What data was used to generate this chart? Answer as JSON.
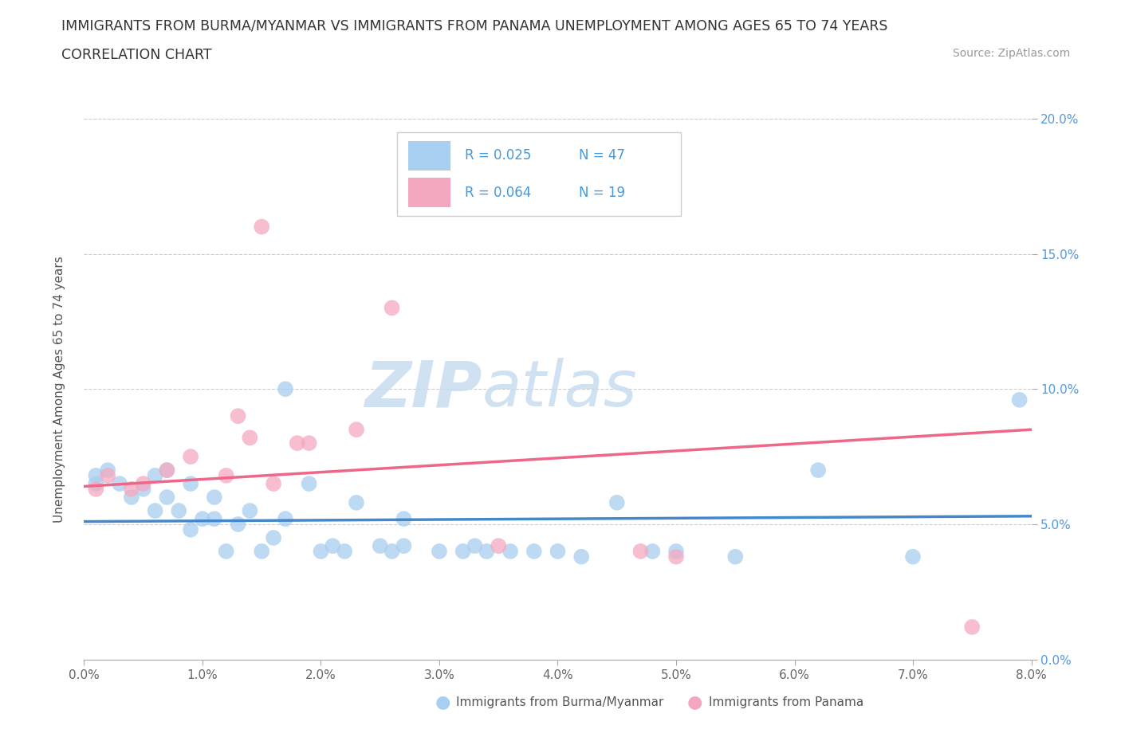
{
  "title_line1": "IMMIGRANTS FROM BURMA/MYANMAR VS IMMIGRANTS FROM PANAMA UNEMPLOYMENT AMONG AGES 65 TO 74 YEARS",
  "title_line2": "CORRELATION CHART",
  "source_text": "Source: ZipAtlas.com",
  "ylabel": "Unemployment Among Ages 65 to 74 years",
  "xlim": [
    0.0,
    0.08
  ],
  "ylim": [
    0.0,
    0.2
  ],
  "xtick_labels": [
    "0.0%",
    "1.0%",
    "2.0%",
    "3.0%",
    "4.0%",
    "5.0%",
    "6.0%",
    "7.0%",
    "8.0%"
  ],
  "xtick_values": [
    0.0,
    0.01,
    0.02,
    0.03,
    0.04,
    0.05,
    0.06,
    0.07,
    0.08
  ],
  "ytick_labels": [
    "0.0%",
    "5.0%",
    "10.0%",
    "15.0%",
    "20.0%"
  ],
  "ytick_values": [
    0.0,
    0.05,
    0.1,
    0.15,
    0.2
  ],
  "watermark_zip": "ZIP",
  "watermark_atlas": "atlas",
  "legend_R_burma": "R = 0.025",
  "legend_N_burma": "N = 47",
  "legend_R_panama": "R = 0.064",
  "legend_N_panama": "N = 19",
  "burma_color": "#a8cef0",
  "panama_color": "#f4a8c0",
  "burma_line_color": "#4488cc",
  "panama_line_color": "#ee6688",
  "burma_scatter_x": [
    0.001,
    0.001,
    0.002,
    0.003,
    0.004,
    0.005,
    0.006,
    0.006,
    0.007,
    0.007,
    0.008,
    0.009,
    0.009,
    0.01,
    0.011,
    0.011,
    0.012,
    0.013,
    0.014,
    0.015,
    0.016,
    0.017,
    0.017,
    0.019,
    0.02,
    0.021,
    0.022,
    0.023,
    0.025,
    0.026,
    0.027,
    0.027,
    0.03,
    0.032,
    0.033,
    0.034,
    0.036,
    0.038,
    0.04,
    0.042,
    0.045,
    0.048,
    0.05,
    0.055,
    0.062,
    0.07,
    0.079
  ],
  "burma_scatter_y": [
    0.065,
    0.068,
    0.07,
    0.065,
    0.06,
    0.063,
    0.068,
    0.055,
    0.07,
    0.06,
    0.055,
    0.065,
    0.048,
    0.052,
    0.06,
    0.052,
    0.04,
    0.05,
    0.055,
    0.04,
    0.045,
    0.052,
    0.1,
    0.065,
    0.04,
    0.042,
    0.04,
    0.058,
    0.042,
    0.04,
    0.042,
    0.052,
    0.04,
    0.04,
    0.042,
    0.04,
    0.04,
    0.04,
    0.04,
    0.038,
    0.058,
    0.04,
    0.04,
    0.038,
    0.07,
    0.038,
    0.096
  ],
  "panama_scatter_x": [
    0.001,
    0.002,
    0.004,
    0.005,
    0.007,
    0.009,
    0.012,
    0.013,
    0.014,
    0.015,
    0.016,
    0.018,
    0.019,
    0.023,
    0.026,
    0.035,
    0.047,
    0.05,
    0.075
  ],
  "panama_scatter_y": [
    0.063,
    0.068,
    0.063,
    0.065,
    0.07,
    0.075,
    0.068,
    0.09,
    0.082,
    0.16,
    0.065,
    0.08,
    0.08,
    0.085,
    0.13,
    0.042,
    0.04,
    0.038,
    0.012
  ],
  "burma_trend_x": [
    0.0,
    0.08
  ],
  "burma_trend_y": [
    0.051,
    0.053
  ],
  "panama_trend_x": [
    0.0,
    0.08
  ],
  "panama_trend_y": [
    0.064,
    0.085
  ]
}
